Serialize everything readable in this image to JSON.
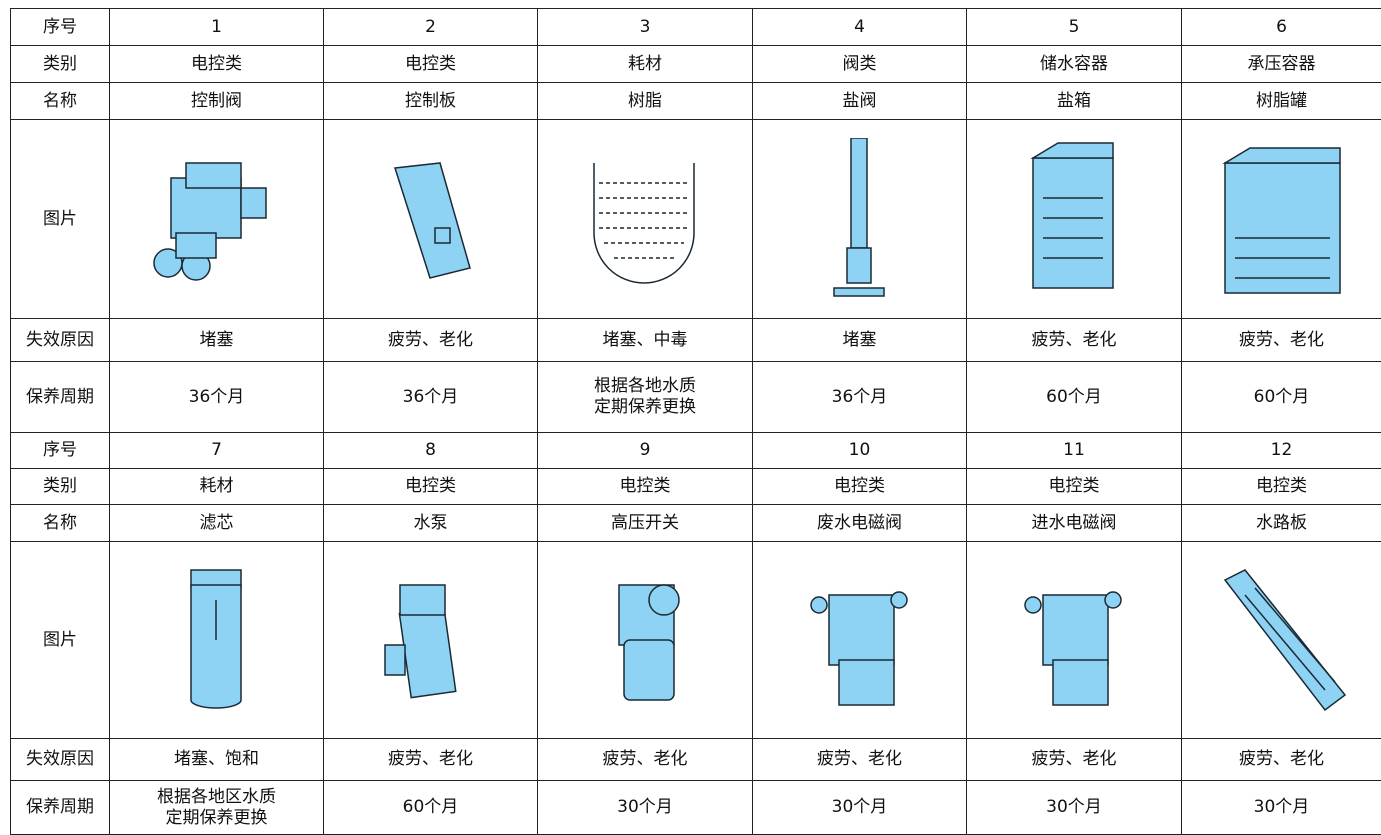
{
  "table": {
    "rows": [
      [
        "序号",
        "1",
        "2",
        "3",
        "4",
        "5",
        "6"
      ],
      [
        "类别",
        "电控类",
        "电控类",
        "耗材",
        "阀类",
        "储水容器",
        "承压容器"
      ],
      [
        "名称",
        "控制阀",
        "控制板",
        "树脂",
        "盐阀",
        "盐箱",
        "树脂罐"
      ],
      [
        "图片"
      ],
      [
        "失效原因",
        "堵塞",
        "疲劳、老化",
        "堵塞、中毒",
        "堵塞",
        "疲劳、老化",
        "疲劳、老化"
      ],
      [
        "保养周期",
        "36个月",
        "36个月",
        "根据各地水质\n定期保养更换",
        "36个月",
        "60个月",
        "60个月"
      ],
      [
        "序号",
        "7",
        "8",
        "9",
        "10",
        "11",
        "12"
      ],
      [
        "类别",
        "耗材",
        "电控类",
        "电控类",
        "电控类",
        "电控类",
        "电控类"
      ],
      [
        "名称",
        "滤芯",
        "水泵",
        "高压开关",
        "废水电磁阀",
        "进水电磁阀",
        "水路板"
      ],
      [
        "图片"
      ],
      [
        "失效原因",
        "堵塞、饱和",
        "疲劳、老化",
        "疲劳、老化",
        "疲劳、老化",
        "疲劳、老化",
        "疲劳、老化"
      ],
      [
        "保养周期",
        "根据各地区水质\n定期保养更换",
        "60个月",
        "30个月",
        "30个月",
        "30个月",
        "30个月"
      ]
    ]
  }
}
